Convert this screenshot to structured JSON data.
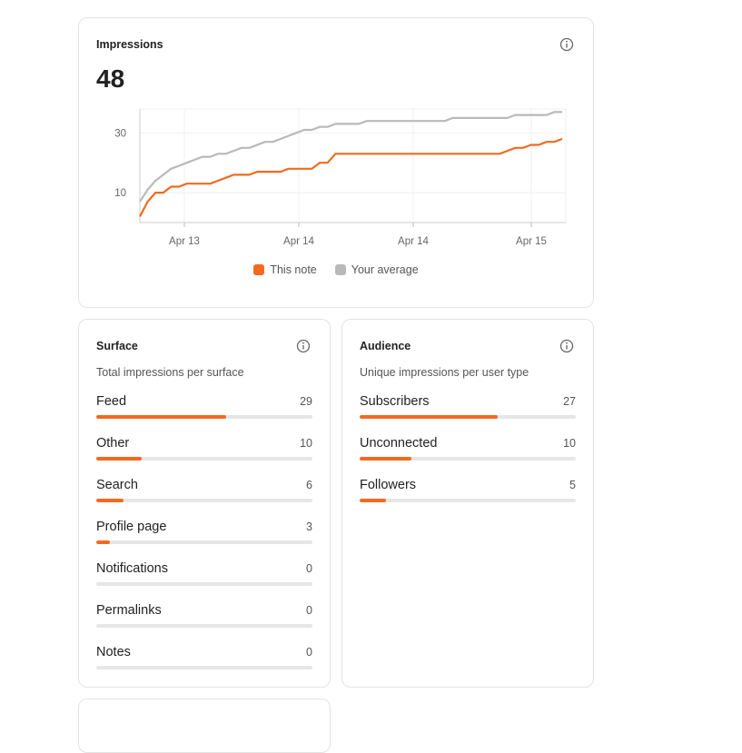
{
  "colors": {
    "accent": "#f26a1f",
    "average": "#b9b9b9",
    "track": "#e6e6e6"
  },
  "impressions": {
    "title": "Impressions",
    "total": "48",
    "info_icon": "info-circle-icon",
    "legend": [
      {
        "label": "This note",
        "color": "#f26a1f"
      },
      {
        "label": "Your average",
        "color": "#b9b9b9"
      }
    ]
  },
  "chart_data": {
    "type": "line",
    "y_ticks": [
      10,
      30
    ],
    "x_ticks": [
      "Apr 13",
      "Apr 14",
      "Apr 14",
      "Apr 15"
    ],
    "grid": true,
    "legend_placement": "bottom",
    "series": [
      {
        "name": "This note",
        "color": "#f26a1f",
        "values": [
          2,
          7,
          10,
          10,
          12,
          12,
          13,
          13,
          13,
          13,
          14,
          15,
          16,
          16,
          16,
          17,
          17,
          17,
          17,
          18,
          18,
          18,
          18,
          20,
          20,
          23,
          23,
          23,
          23,
          23,
          23,
          23,
          23,
          23,
          23,
          23,
          23,
          23,
          23,
          23,
          23,
          23,
          23,
          23,
          23,
          23,
          23,
          24,
          25,
          25,
          26,
          26,
          27,
          27,
          28
        ]
      },
      {
        "name": "Your average",
        "color": "#b9b9b9",
        "values": [
          7,
          11,
          14,
          16,
          18,
          19,
          20,
          21,
          22,
          22,
          23,
          23,
          24,
          25,
          25,
          26,
          27,
          27,
          28,
          29,
          30,
          31,
          31,
          32,
          32,
          33,
          33,
          33,
          33,
          34,
          34,
          34,
          34,
          34,
          34,
          34,
          34,
          34,
          34,
          34,
          35,
          35,
          35,
          35,
          35,
          35,
          35,
          35,
          36,
          36,
          36,
          36,
          36,
          37,
          37
        ]
      }
    ]
  },
  "surface": {
    "title": "Surface",
    "subtitle": "Total impressions per surface",
    "info_icon": "info-circle-icon",
    "max": 48,
    "items": [
      {
        "label": "Feed",
        "value": "29",
        "fraction": 0.6
      },
      {
        "label": "Other",
        "value": "10",
        "fraction": 0.21
      },
      {
        "label": "Search",
        "value": "6",
        "fraction": 0.125
      },
      {
        "label": "Profile page",
        "value": "3",
        "fraction": 0.063
      },
      {
        "label": "Notifications",
        "value": "0",
        "fraction": 0
      },
      {
        "label": "Permalinks",
        "value": "0",
        "fraction": 0
      },
      {
        "label": "Notes",
        "value": "0",
        "fraction": 0
      }
    ]
  },
  "audience": {
    "title": "Audience",
    "subtitle": "Unique impressions per user type",
    "info_icon": "info-circle-icon",
    "items": [
      {
        "label": "Subscribers",
        "value": "27",
        "fraction": 0.64
      },
      {
        "label": "Unconnected",
        "value": "10",
        "fraction": 0.24
      },
      {
        "label": "Followers",
        "value": "5",
        "fraction": 0.12
      }
    ]
  }
}
